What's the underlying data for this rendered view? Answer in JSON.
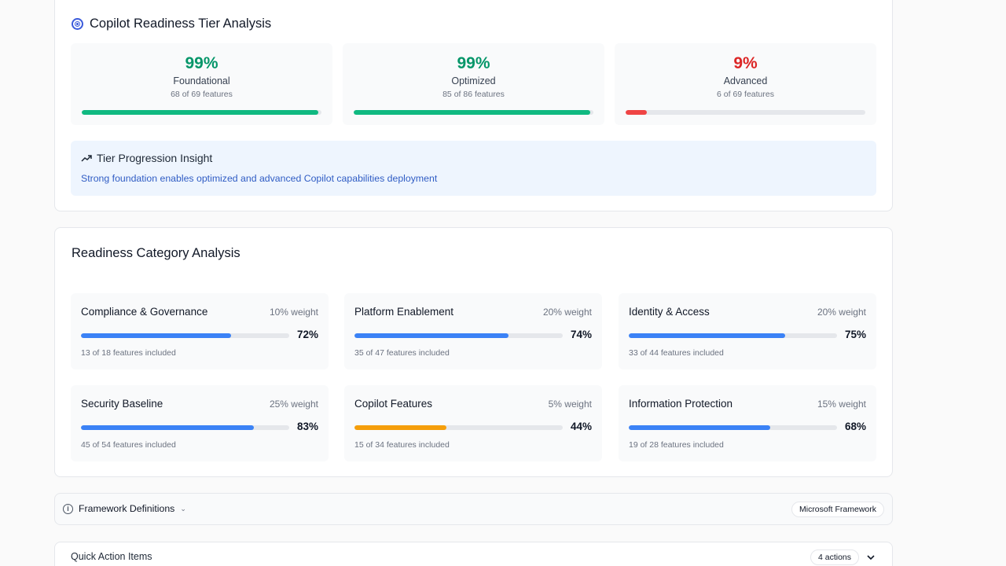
{
  "tier_card": {
    "title": "Copilot Readiness Tier Analysis",
    "tiers": [
      {
        "pct": "99%",
        "name": "Foundational",
        "count": "68 of 69 features",
        "progress": 98.6,
        "color": "#10b981"
      },
      {
        "pct": "99%",
        "name": "Optimized",
        "count": "85 of 86 features",
        "progress": 98.8,
        "color": "#10b981"
      },
      {
        "pct": "9%",
        "name": "Advanced",
        "count": "6 of 69 features",
        "progress": 9,
        "color": "#ef4444"
      }
    ],
    "insight": {
      "title": "Tier Progression Insight",
      "text": "Strong foundation enables optimized and advanced Copilot capabilities deployment"
    }
  },
  "category_card": {
    "title": "Readiness Category Analysis",
    "categories": [
      {
        "name": "Compliance & Governance",
        "weight": "10% weight",
        "pct": "72%",
        "count": "13 of 18 features included",
        "progress": 72,
        "color": "#3b82f6"
      },
      {
        "name": "Platform Enablement",
        "weight": "20% weight",
        "pct": "74%",
        "count": "35 of 47 features included",
        "progress": 74,
        "color": "#3b82f6"
      },
      {
        "name": "Identity & Access",
        "weight": "20% weight",
        "pct": "75%",
        "count": "33 of 44 features included",
        "progress": 75,
        "color": "#3b82f6"
      },
      {
        "name": "Security Baseline",
        "weight": "25% weight",
        "pct": "83%",
        "count": "45 of 54 features included",
        "progress": 83,
        "color": "#3b82f6"
      },
      {
        "name": "Copilot Features",
        "weight": "5% weight",
        "pct": "44%",
        "count": "15 of 34 features included",
        "progress": 44,
        "color": "#f59e0b"
      },
      {
        "name": "Information Protection",
        "weight": "15% weight",
        "pct": "68%",
        "count": "19 of 28 features included",
        "progress": 68,
        "color": "#3b82f6"
      }
    ]
  },
  "framework": {
    "label": "Framework Definitions",
    "badge": "Microsoft Framework",
    "icon": "info-icon"
  },
  "quick_actions": {
    "title": "Quick Action Items",
    "badge": "4 actions"
  }
}
